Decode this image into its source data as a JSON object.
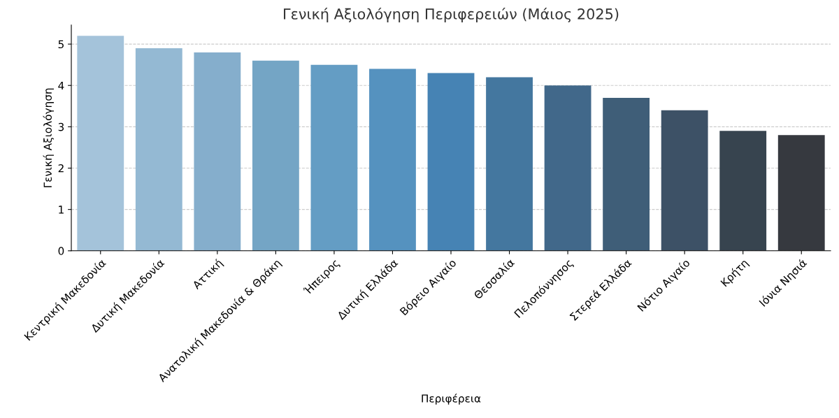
{
  "chart_data": {
    "type": "bar",
    "title": "Γενική Αξιολόγηση Περιφερειών (Μάιος 2025)",
    "xlabel": "Περιφέρεια",
    "ylabel": "Γενική Αξιολόγηση",
    "categories": [
      "Κεντρική Μακεδονία",
      "Δυτική Μακεδονία",
      "Αττική",
      "Ανατολική Μακεδονία & Θράκη",
      "Ήπειρος",
      "Δυτική Ελλάδα",
      "Βόρειο Αιγαίο",
      "Θεσσαλία",
      "Πελοπόννησος",
      "Στερεά Ελλάδα",
      "Νότιο Αιγαίο",
      "Κρήτη",
      "Ιόνια Νησιά"
    ],
    "values": [
      5.2,
      4.9,
      4.8,
      4.6,
      4.5,
      4.4,
      4.3,
      4.2,
      4.0,
      3.7,
      3.4,
      2.9,
      2.8
    ],
    "colors": [
      "#a4c3da",
      "#94b9d3",
      "#85aecc",
      "#74a5c5",
      "#649dc4",
      "#5592bf",
      "#4683b4",
      "#44779f",
      "#41688a",
      "#3f5e78",
      "#3d5166",
      "#37444f",
      "#36393f"
    ],
    "ylim": [
      0,
      5.46
    ],
    "yticks": [
      0,
      1,
      2,
      3,
      4,
      5
    ],
    "grid": "y"
  }
}
